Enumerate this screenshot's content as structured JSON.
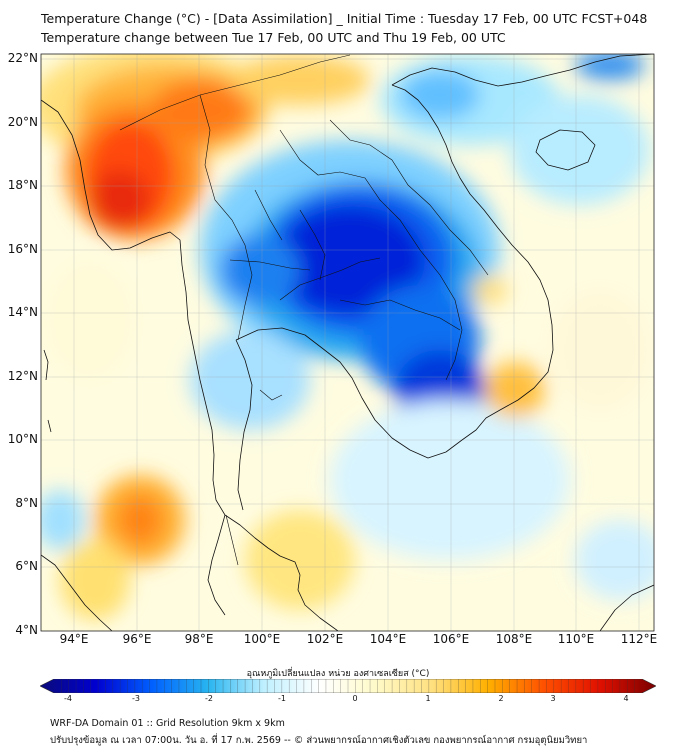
{
  "title_line1": "Temperature Change (°C) - [Data Assimilation] _ Initial Time : Tuesday 17 Feb, 00 UTC FCST+048",
  "title_line2": "Temperature change between Tue 17 Feb, 00 UTC and Thu 19 Feb, 00 UTC",
  "lat_labels": [
    "22°N",
    "20°N",
    "18°N",
    "16°N",
    "14°N",
    "12°N",
    "10°N",
    "8°N",
    "6°N",
    "4°N"
  ],
  "lon_labels": [
    "94°E",
    "96°E",
    "98°E",
    "100°E",
    "102°E",
    "104°E",
    "106°E",
    "108°E",
    "110°E",
    "112°E"
  ],
  "colorbar": {
    "title": "อุณหภูมิเปลี่ยนแปลง หน่วย องศาเซลเซียส (°C)",
    "ticks": [
      "-4",
      "-3",
      "-2",
      "-1",
      "0",
      "1",
      "2",
      "3",
      "4"
    ],
    "range": [
      -4,
      4
    ],
    "colors": [
      "#0a0a7a",
      "#0000d0",
      "#0060ff",
      "#28b4f0",
      "#bff0ff",
      "#ffffff",
      "#fffac8",
      "#ffe080",
      "#ffb000",
      "#ff5000",
      "#e01000",
      "#7a0000"
    ]
  },
  "footer_line1": "WRF-DA Domain 01 :: Grid Resolution 9km x 9km",
  "footer_line2": "ปรับปรุงข้อมูล ณ เวลา 07:00น. วัน อ. ที่ 17 ก.พ. 2569 -- © ส่วนพยากรณ์อากาศเชิงตัวเลข กองพยากรณ์อากาศ กรมอุตุนิยมวิทยา"
}
